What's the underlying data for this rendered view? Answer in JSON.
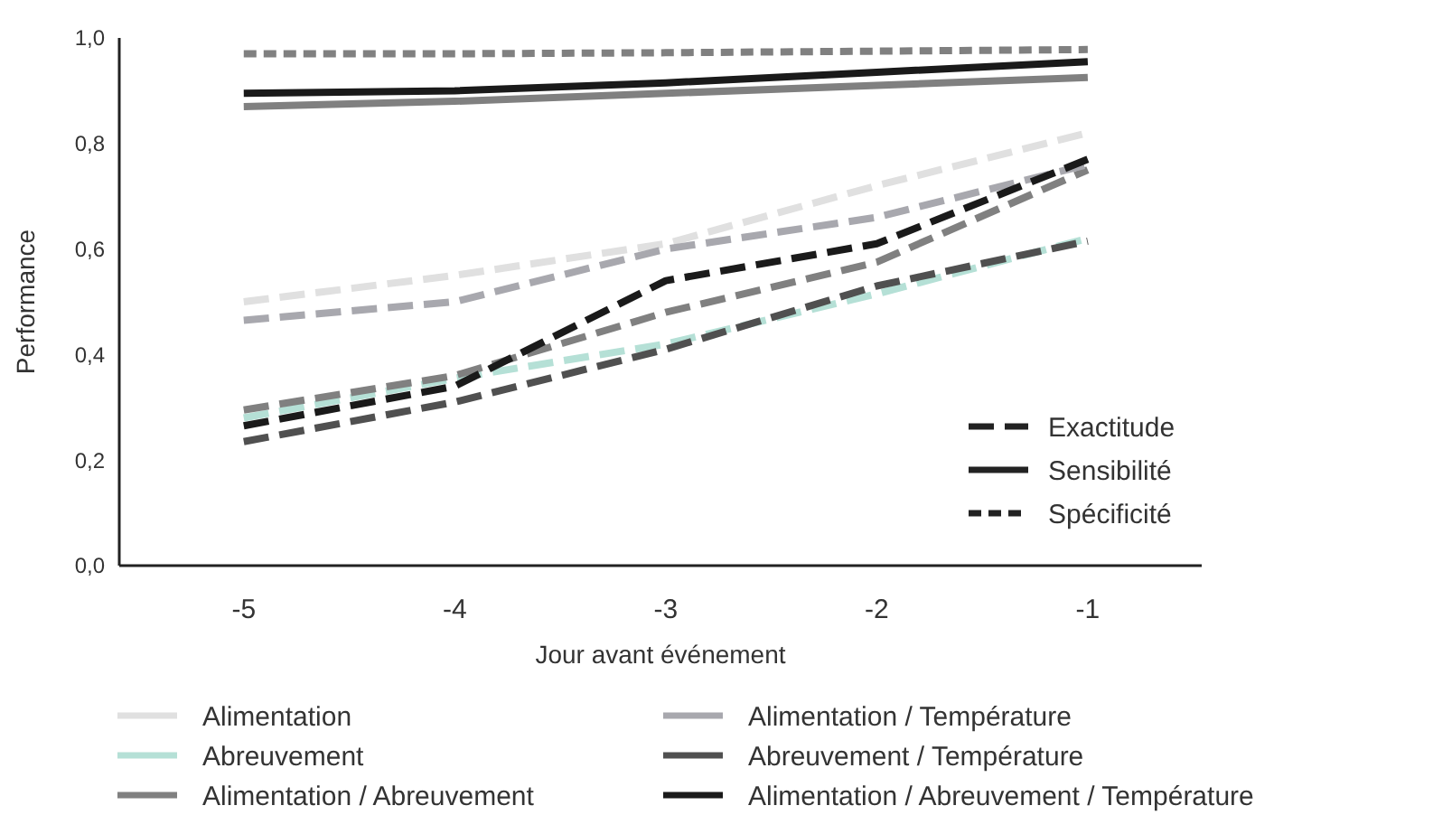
{
  "chart_data": {
    "type": "line",
    "xlabel": "Jour avant événement",
    "ylabel": "Performance",
    "categories": [
      "-5",
      "-4",
      "-3",
      "-2",
      "-1"
    ],
    "ylim": [
      0,
      1
    ],
    "yticks": [
      {
        "value": 0,
        "label": "0,0"
      },
      {
        "value": 0.2,
        "label": "0,2"
      },
      {
        "value": 0.4,
        "label": "0,4"
      },
      {
        "value": 0.6,
        "label": "0,6"
      },
      {
        "value": 0.8,
        "label": "0,8"
      },
      {
        "value": 1,
        "label": "1,0"
      }
    ],
    "grid": false,
    "legend": "bottom",
    "annotations": [
      "Exactitude",
      "Sensibilité",
      "Spécificité"
    ],
    "series": [
      {
        "name": "Alimentation",
        "color": "#e0e0e0",
        "line_style": "dashed",
        "values": [
          0.5,
          0.55,
          0.61,
          0.72,
          0.82
        ]
      },
      {
        "name": "Abreuvement",
        "color": "#b5e0d6",
        "line_style": "dashed",
        "values": [
          0.28,
          0.355,
          0.42,
          0.515,
          0.62
        ]
      },
      {
        "name": "Alimentation / Abreuvement",
        "color": "#808080",
        "line_style": "dashed",
        "values": [
          0.295,
          0.36,
          0.48,
          0.575,
          0.75
        ]
      },
      {
        "name": "Alimentation / Température",
        "color": "#a8a8ae",
        "line_style": "dashed",
        "values": [
          0.465,
          0.5,
          0.6,
          0.66,
          0.76
        ]
      },
      {
        "name": "Abreuvement / Température",
        "color": "#505050",
        "line_style": "dashed",
        "values": [
          0.235,
          0.31,
          0.41,
          0.53,
          0.615
        ]
      },
      {
        "name": "Alimentation / Abreuvement / Température",
        "color": "#1a1a1a",
        "line_style": "dashed",
        "values": [
          0.265,
          0.34,
          0.54,
          0.61,
          0.77
        ]
      },
      {
        "color": "#1a1a1a",
        "line_style": "solid",
        "values": [
          0.895,
          0.9,
          0.915,
          0.935,
          0.955
        ]
      },
      {
        "color": "#808080",
        "line_style": "solid",
        "values": [
          0.87,
          0.88,
          0.895,
          0.91,
          0.925
        ]
      },
      {
        "color": "#808080",
        "line_style": "dotted",
        "values": [
          0.97,
          0.97,
          0.972,
          0.975,
          0.978
        ]
      }
    ]
  }
}
